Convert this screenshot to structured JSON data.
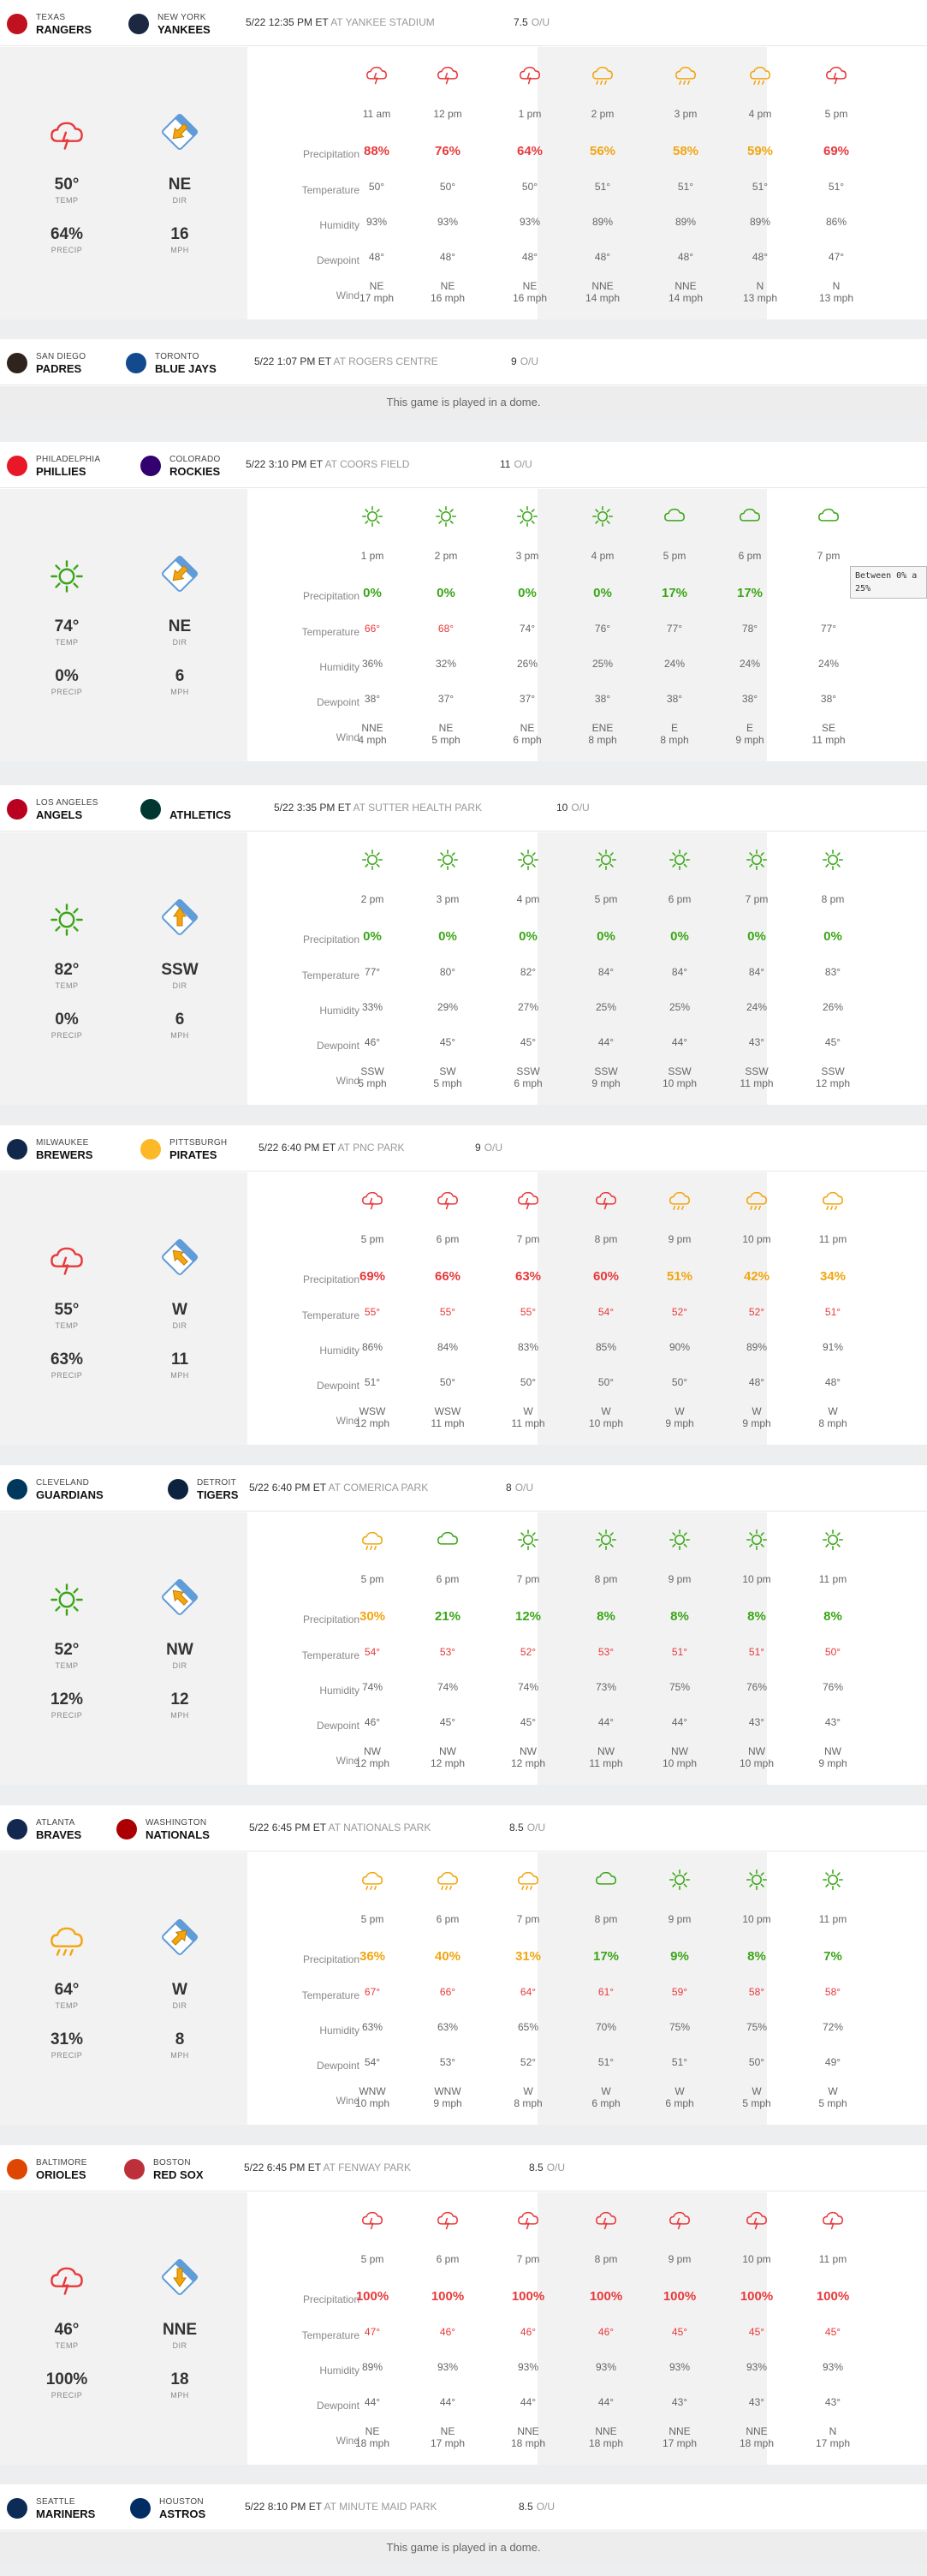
{
  "labels": {
    "precipitation": "Precipitation",
    "temperature": "Temperature",
    "humidity": "Humidity",
    "dewpoint": "Dewpoint",
    "wind": "Wind",
    "temp": "TEMP",
    "precip": "PRECIP",
    "dir": "DIR",
    "mph": "MPH",
    "ou": "O/U"
  },
  "colors": {
    "red": "#e8393b",
    "orange": "#f2a50f",
    "green": "#3aa617",
    "temp_red": "#e8393b",
    "gray_text": "#666666",
    "shade": "#f2f2f2"
  },
  "games": [
    {
      "away": {
        "city": "Texas",
        "name": "Rangers",
        "logo_color": "#c0111f"
      },
      "home": {
        "city": "New York",
        "name": "Yankees",
        "logo_color": "#1c2841"
      },
      "datetime": "5/22 12:35 PM ET",
      "venue": "AT YANKEE STADIUM",
      "ou": "7.5",
      "dome": false,
      "summary": {
        "icon": "rain-icon",
        "temp": "50°",
        "precip": "64%",
        "dir": "NE",
        "mph": "16",
        "arrow": "arrow-down-left"
      },
      "hours": [
        {
          "time": "11 am",
          "icon": "rain-icon",
          "precip": "88%",
          "pc": "red",
          "temp": "50°",
          "hum": "93%",
          "dew": "48°",
          "wind_dir": "NE",
          "wind_speed": "17 mph"
        },
        {
          "time": "12 pm",
          "icon": "rain-icon",
          "precip": "76%",
          "pc": "red",
          "temp": "50°",
          "hum": "93%",
          "dew": "48°",
          "wind_dir": "NE",
          "wind_speed": "16 mph"
        },
        {
          "time": "1 pm",
          "icon": "rain-icon",
          "precip": "64%",
          "pc": "red",
          "temp": "50°",
          "hum": "93%",
          "dew": "48°",
          "wind_dir": "NE",
          "wind_speed": "16 mph"
        },
        {
          "time": "2 pm",
          "icon": "showers-icon",
          "precip": "56%",
          "pc": "orange",
          "temp": "51°",
          "hum": "89%",
          "dew": "48°",
          "wind_dir": "NNE",
          "wind_speed": "14 mph"
        },
        {
          "time": "3 pm",
          "icon": "showers-icon",
          "precip": "58%",
          "pc": "orange",
          "temp": "51°",
          "hum": "89%",
          "dew": "48°",
          "wind_dir": "NNE",
          "wind_speed": "14 mph"
        },
        {
          "time": "4 pm",
          "icon": "showers-icon",
          "precip": "59%",
          "pc": "orange",
          "temp": "51°",
          "hum": "89%",
          "dew": "48°",
          "wind_dir": "N",
          "wind_speed": "13 mph"
        },
        {
          "time": "5 pm",
          "icon": "rain-icon",
          "precip": "69%",
          "pc": "red",
          "temp": "51°",
          "hum": "86%",
          "dew": "47°",
          "wind_dir": "N",
          "wind_speed": "13 mph"
        }
      ]
    },
    {
      "away": {
        "city": "San Diego",
        "name": "Padres",
        "logo_color": "#2f241d"
      },
      "home": {
        "city": "Toronto",
        "name": "Blue Jays",
        "logo_color": "#134a8e"
      },
      "datetime": "5/22 1:07 PM ET",
      "venue": "AT ROGERS CENTRE",
      "ou": "9",
      "dome": true,
      "dome_text": "This game is played in a dome."
    },
    {
      "away": {
        "city": "Philadelphia",
        "name": "Phillies",
        "logo_color": "#e81828"
      },
      "home": {
        "city": "Colorado",
        "name": "Rockies",
        "logo_color": "#33006f"
      },
      "datetime": "5/22 3:10 PM ET",
      "venue": "AT COORS FIELD",
      "ou": "11",
      "dome": false,
      "summary": {
        "icon": "sun-icon",
        "temp": "74°",
        "precip": "0%",
        "dir": "NE",
        "mph": "6",
        "arrow": "arrow-down-left"
      },
      "tooltip": {
        "line1": "Between 0% a",
        "line2": "25%"
      },
      "hours": [
        {
          "time": "1 pm",
          "icon": "sun-icon",
          "precip": "0%",
          "pc": "green",
          "temp": "66°",
          "tc": "red",
          "hum": "36%",
          "dew": "38°",
          "wind_dir": "NNE",
          "wind_speed": "4 mph"
        },
        {
          "time": "2 pm",
          "icon": "sun-icon",
          "precip": "0%",
          "pc": "green",
          "temp": "68°",
          "tc": "red",
          "hum": "32%",
          "dew": "37°",
          "wind_dir": "NE",
          "wind_speed": "5 mph"
        },
        {
          "time": "3 pm",
          "icon": "sun-icon",
          "precip": "0%",
          "pc": "green",
          "temp": "74°",
          "hum": "26%",
          "dew": "37°",
          "wind_dir": "NE",
          "wind_speed": "6 mph"
        },
        {
          "time": "4 pm",
          "icon": "sun-icon",
          "precip": "0%",
          "pc": "green",
          "temp": "76°",
          "hum": "25%",
          "dew": "38°",
          "wind_dir": "ENE",
          "wind_speed": "8 mph"
        },
        {
          "time": "5 pm",
          "icon": "cloud-icon",
          "precip": "17%",
          "pc": "green",
          "temp": "77°",
          "hum": "24%",
          "dew": "38°",
          "wind_dir": "E",
          "wind_speed": "8 mph"
        },
        {
          "time": "6 pm",
          "icon": "cloud-icon",
          "precip": "17%",
          "pc": "green",
          "temp": "78°",
          "hum": "24%",
          "dew": "38°",
          "wind_dir": "E",
          "wind_speed": "9 mph"
        },
        {
          "time": "7 pm",
          "icon": "cloud-icon",
          "precip": "",
          "pc": "green",
          "temp": "77°",
          "hum": "24%",
          "dew": "38°",
          "wind_dir": "SE",
          "wind_speed": "11 mph"
        }
      ]
    },
    {
      "away": {
        "city": "Los Angeles",
        "name": "Angels",
        "logo_color": "#ba0021"
      },
      "home": {
        "city": "",
        "name": "Athletics",
        "logo_color": "#003831"
      },
      "datetime": "5/22 3:35 PM ET",
      "venue": "AT SUTTER HEALTH PARK",
      "ou": "10",
      "dome": false,
      "summary": {
        "icon": "sun-icon",
        "temp": "82°",
        "precip": "0%",
        "dir": "SSW",
        "mph": "6",
        "arrow": "arrow-up"
      },
      "hours": [
        {
          "time": "2 pm",
          "icon": "sun-icon",
          "precip": "0%",
          "pc": "green",
          "temp": "77°",
          "hum": "33%",
          "dew": "46°",
          "wind_dir": "SSW",
          "wind_speed": "5 mph"
        },
        {
          "time": "3 pm",
          "icon": "sun-icon",
          "precip": "0%",
          "pc": "green",
          "temp": "80°",
          "hum": "29%",
          "dew": "45°",
          "wind_dir": "SW",
          "wind_speed": "5 mph"
        },
        {
          "time": "4 pm",
          "icon": "sun-icon",
          "precip": "0%",
          "pc": "green",
          "temp": "82°",
          "hum": "27%",
          "dew": "45°",
          "wind_dir": "SSW",
          "wind_speed": "6 mph"
        },
        {
          "time": "5 pm",
          "icon": "sun-icon",
          "precip": "0%",
          "pc": "green",
          "temp": "84°",
          "hum": "25%",
          "dew": "44°",
          "wind_dir": "SSW",
          "wind_speed": "9 mph"
        },
        {
          "time": "6 pm",
          "icon": "sun-icon",
          "precip": "0%",
          "pc": "green",
          "temp": "84°",
          "hum": "25%",
          "dew": "44°",
          "wind_dir": "SSW",
          "wind_speed": "10 mph"
        },
        {
          "time": "7 pm",
          "icon": "sun-icon",
          "precip": "0%",
          "pc": "green",
          "temp": "84°",
          "hum": "24%",
          "dew": "43°",
          "wind_dir": "SSW",
          "wind_speed": "11 mph"
        },
        {
          "time": "8 pm",
          "icon": "sun-icon",
          "precip": "0%",
          "pc": "green",
          "temp": "83°",
          "hum": "26%",
          "dew": "45°",
          "wind_dir": "SSW",
          "wind_speed": "12 mph"
        }
      ]
    },
    {
      "away": {
        "city": "Milwaukee",
        "name": "Brewers",
        "logo_color": "#12284b"
      },
      "home": {
        "city": "Pittsburgh",
        "name": "Pirates",
        "logo_color": "#fdb827"
      },
      "datetime": "5/22 6:40 PM ET",
      "venue": "AT PNC PARK",
      "ou": "9",
      "dome": false,
      "summary": {
        "icon": "rain-icon",
        "temp": "55°",
        "precip": "63%",
        "dir": "W",
        "mph": "11",
        "arrow": "arrow-up-left"
      },
      "hours": [
        {
          "time": "5 pm",
          "icon": "rain-icon",
          "precip": "69%",
          "pc": "red",
          "temp": "55°",
          "tc": "red",
          "hum": "86%",
          "dew": "51°",
          "wind_dir": "WSW",
          "wind_speed": "12 mph"
        },
        {
          "time": "6 pm",
          "icon": "rain-icon",
          "precip": "66%",
          "pc": "red",
          "temp": "55°",
          "tc": "red",
          "hum": "84%",
          "dew": "50°",
          "wind_dir": "WSW",
          "wind_speed": "11 mph"
        },
        {
          "time": "7 pm",
          "icon": "rain-icon",
          "precip": "63%",
          "pc": "red",
          "temp": "55°",
          "tc": "red",
          "hum": "83%",
          "dew": "50°",
          "wind_dir": "W",
          "wind_speed": "11 mph"
        },
        {
          "time": "8 pm",
          "icon": "rain-icon",
          "precip": "60%",
          "pc": "red",
          "temp": "54°",
          "tc": "red",
          "hum": "85%",
          "dew": "50°",
          "wind_dir": "W",
          "wind_speed": "10 mph"
        },
        {
          "time": "9 pm",
          "icon": "showers-icon",
          "precip": "51%",
          "pc": "orange",
          "temp": "52°",
          "tc": "red",
          "hum": "90%",
          "dew": "50°",
          "wind_dir": "W",
          "wind_speed": "9 mph"
        },
        {
          "time": "10 pm",
          "icon": "showers-icon",
          "precip": "42%",
          "pc": "orange",
          "temp": "52°",
          "tc": "red",
          "hum": "89%",
          "dew": "48°",
          "wind_dir": "W",
          "wind_speed": "9 mph"
        },
        {
          "time": "11 pm",
          "icon": "showers-icon",
          "precip": "34%",
          "pc": "orange",
          "temp": "51°",
          "tc": "red",
          "hum": "91%",
          "dew": "48°",
          "wind_dir": "W",
          "wind_speed": "8 mph"
        }
      ]
    },
    {
      "away": {
        "city": "Cleveland",
        "name": "Guardians",
        "logo_color": "#00385d"
      },
      "home": {
        "city": "Detroit",
        "name": "Tigers",
        "logo_color": "#0c2340"
      },
      "datetime": "5/22 6:40 PM ET",
      "venue": "AT COMERICA PARK",
      "ou": "8",
      "dome": false,
      "summary": {
        "icon": "sun-icon",
        "temp": "52°",
        "precip": "12%",
        "dir": "NW",
        "mph": "12",
        "arrow": "arrow-up-left"
      },
      "hours": [
        {
          "time": "5 pm",
          "icon": "showers-icon",
          "precip": "30%",
          "pc": "orange",
          "temp": "54°",
          "tc": "red",
          "hum": "74%",
          "dew": "46°",
          "wind_dir": "NW",
          "wind_speed": "12 mph"
        },
        {
          "time": "6 pm",
          "icon": "cloud-icon",
          "precip": "21%",
          "pc": "green",
          "temp": "53°",
          "tc": "red",
          "hum": "74%",
          "dew": "45°",
          "wind_dir": "NW",
          "wind_speed": "12 mph"
        },
        {
          "time": "7 pm",
          "icon": "sun-icon",
          "precip": "12%",
          "pc": "green",
          "temp": "52°",
          "tc": "red",
          "hum": "74%",
          "dew": "45°",
          "wind_dir": "NW",
          "wind_speed": "12 mph"
        },
        {
          "time": "8 pm",
          "icon": "sun-icon",
          "precip": "8%",
          "pc": "green",
          "temp": "53°",
          "tc": "red",
          "hum": "73%",
          "dew": "44°",
          "wind_dir": "NW",
          "wind_speed": "11 mph"
        },
        {
          "time": "9 pm",
          "icon": "sun-icon",
          "precip": "8%",
          "pc": "green",
          "temp": "51°",
          "tc": "red",
          "hum": "75%",
          "dew": "44°",
          "wind_dir": "NW",
          "wind_speed": "10 mph"
        },
        {
          "time": "10 pm",
          "icon": "sun-icon",
          "precip": "8%",
          "pc": "green",
          "temp": "51°",
          "tc": "red",
          "hum": "76%",
          "dew": "43°",
          "wind_dir": "NW",
          "wind_speed": "10 mph"
        },
        {
          "time": "11 pm",
          "icon": "sun-icon",
          "precip": "8%",
          "pc": "green",
          "temp": "50°",
          "tc": "red",
          "hum": "76%",
          "dew": "43°",
          "wind_dir": "NW",
          "wind_speed": "9 mph"
        }
      ]
    },
    {
      "away": {
        "city": "Atlanta",
        "name": "Braves",
        "logo_color": "#13274f"
      },
      "home": {
        "city": "Washington",
        "name": "Nationals",
        "logo_color": "#ab0003"
      },
      "datetime": "5/22 6:45 PM ET",
      "venue": "AT NATIONALS PARK",
      "ou": "8.5",
      "dome": false,
      "summary": {
        "icon": "showers-icon",
        "temp": "64°",
        "precip": "31%",
        "dir": "W",
        "mph": "8",
        "arrow": "arrow-up-right"
      },
      "hours": [
        {
          "time": "5 pm",
          "icon": "showers-icon",
          "precip": "36%",
          "pc": "orange",
          "temp": "67°",
          "tc": "red",
          "hum": "63%",
          "dew": "54°",
          "wind_dir": "WNW",
          "wind_speed": "10 mph"
        },
        {
          "time": "6 pm",
          "icon": "showers-icon",
          "precip": "40%",
          "pc": "orange",
          "temp": "66°",
          "tc": "red",
          "hum": "63%",
          "dew": "53°",
          "wind_dir": "WNW",
          "wind_speed": "9 mph"
        },
        {
          "time": "7 pm",
          "icon": "showers-icon",
          "precip": "31%",
          "pc": "orange",
          "temp": "64°",
          "tc": "red",
          "hum": "65%",
          "dew": "52°",
          "wind_dir": "W",
          "wind_speed": "8 mph"
        },
        {
          "time": "8 pm",
          "icon": "cloud-icon",
          "precip": "17%",
          "pc": "green",
          "temp": "61°",
          "tc": "red",
          "hum": "70%",
          "dew": "51°",
          "wind_dir": "W",
          "wind_speed": "6 mph"
        },
        {
          "time": "9 pm",
          "icon": "sun-icon",
          "precip": "9%",
          "pc": "green",
          "temp": "59°",
          "tc": "red",
          "hum": "75%",
          "dew": "51°",
          "wind_dir": "W",
          "wind_speed": "6 mph"
        },
        {
          "time": "10 pm",
          "icon": "sun-icon",
          "precip": "8%",
          "pc": "green",
          "temp": "58°",
          "tc": "red",
          "hum": "75%",
          "dew": "50°",
          "wind_dir": "W",
          "wind_speed": "5 mph"
        },
        {
          "time": "11 pm",
          "icon": "sun-icon",
          "precip": "7%",
          "pc": "green",
          "temp": "58°",
          "tc": "red",
          "hum": "72%",
          "dew": "49°",
          "wind_dir": "W",
          "wind_speed": "5 mph"
        }
      ]
    },
    {
      "away": {
        "city": "Baltimore",
        "name": "Orioles",
        "logo_color": "#df4601"
      },
      "home": {
        "city": "Boston",
        "name": "Red Sox",
        "logo_color": "#bd3039"
      },
      "datetime": "5/22 6:45 PM ET",
      "venue": "AT FENWAY PARK",
      "ou": "8.5",
      "dome": false,
      "summary": {
        "icon": "rain-icon",
        "temp": "46°",
        "precip": "100%",
        "dir": "NNE",
        "mph": "18",
        "arrow": "arrow-down"
      },
      "hours": [
        {
          "time": "5 pm",
          "icon": "rain-icon",
          "precip": "100%",
          "pc": "red",
          "temp": "47°",
          "tc": "red",
          "hum": "89%",
          "dew": "44°",
          "wind_dir": "NE",
          "wind_speed": "18 mph"
        },
        {
          "time": "6 pm",
          "icon": "rain-icon",
          "precip": "100%",
          "pc": "red",
          "temp": "46°",
          "tc": "red",
          "hum": "93%",
          "dew": "44°",
          "wind_dir": "NE",
          "wind_speed": "17 mph"
        },
        {
          "time": "7 pm",
          "icon": "rain-icon",
          "precip": "100%",
          "pc": "red",
          "temp": "46°",
          "tc": "red",
          "hum": "93%",
          "dew": "44°",
          "wind_dir": "NNE",
          "wind_speed": "18 mph"
        },
        {
          "time": "8 pm",
          "icon": "rain-icon",
          "precip": "100%",
          "pc": "red",
          "temp": "46°",
          "tc": "red",
          "hum": "93%",
          "dew": "44°",
          "wind_dir": "NNE",
          "wind_speed": "18 mph"
        },
        {
          "time": "9 pm",
          "icon": "rain-icon",
          "precip": "100%",
          "pc": "red",
          "temp": "45°",
          "tc": "red",
          "hum": "93%",
          "dew": "43°",
          "wind_dir": "NNE",
          "wind_speed": "17 mph"
        },
        {
          "time": "10 pm",
          "icon": "rain-icon",
          "precip": "100%",
          "pc": "red",
          "temp": "45°",
          "tc": "red",
          "hum": "93%",
          "dew": "43°",
          "wind_dir": "NNE",
          "wind_speed": "18 mph"
        },
        {
          "time": "11 pm",
          "icon": "rain-icon",
          "precip": "100%",
          "pc": "red",
          "temp": "45°",
          "tc": "red",
          "hum": "93%",
          "dew": "43°",
          "wind_dir": "N",
          "wind_speed": "17 mph"
        }
      ]
    },
    {
      "away": {
        "city": "Seattle",
        "name": "Mariners",
        "logo_color": "#0c2c56"
      },
      "home": {
        "city": "Houston",
        "name": "Astros",
        "logo_color": "#002d62"
      },
      "datetime": "5/22 8:10 PM ET",
      "venue": "AT MINUTE MAID PARK",
      "ou": "8.5",
      "dome": true,
      "dome_text": "This game is played in a dome."
    }
  ]
}
